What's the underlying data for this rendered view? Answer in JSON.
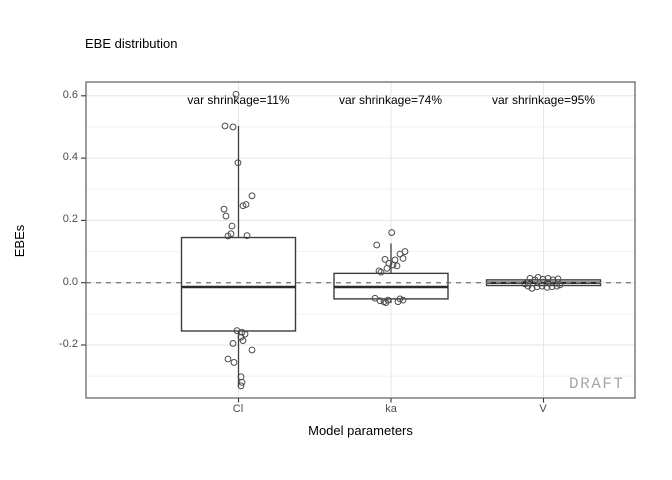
{
  "chart_data": {
    "type": "boxplot",
    "title": "EBE distribution",
    "xlabel": "Model parameters",
    "ylabel": "EBEs",
    "categories": [
      "Cl",
      "ka",
      "V"
    ],
    "y_ticks": [
      0.6,
      0.4,
      0.2,
      0.0,
      -0.2
    ],
    "y_tick_labels": [
      "0.6",
      "0.4",
      "0.2",
      "0.0",
      "-0.2"
    ],
    "y_minor_ticks": [
      0.5,
      0.3,
      0.1,
      -0.1,
      -0.3
    ],
    "ylim": [
      -0.37,
      0.644
    ],
    "reference_line": 0.0,
    "grid": true,
    "legend": false,
    "watermark": "DRAFT",
    "annotations": [
      {
        "category": "Cl",
        "label": "var shrinkage=11%"
      },
      {
        "category": "ka",
        "label": "var shrinkage=74%"
      },
      {
        "category": "V",
        "label": "var shrinkage=95%"
      }
    ],
    "series": [
      {
        "name": "Cl",
        "q1": -0.155,
        "median": -0.014,
        "q3": 0.145,
        "whisker_low": -0.334,
        "whisker_high": 0.503,
        "points": [
          [
            -2.5,
            0.605
          ],
          [
            -13.5,
            0.503
          ],
          [
            -5.5,
            0.5
          ],
          [
            -0.5,
            0.385
          ],
          [
            13.5,
            0.279
          ],
          [
            7.5,
            0.251
          ],
          [
            4.5,
            0.247
          ],
          [
            -14.5,
            0.236
          ],
          [
            -12.5,
            0.214
          ],
          [
            -6.5,
            0.182
          ],
          [
            -7.5,
            0.157
          ],
          [
            8.5,
            0.151
          ],
          [
            -10.5,
            0.15
          ],
          [
            -1.5,
            -0.154
          ],
          [
            3.5,
            -0.159
          ],
          [
            6.5,
            -0.165
          ],
          [
            2.5,
            -0.175
          ],
          [
            4.5,
            -0.186
          ],
          [
            -5.5,
            -0.195
          ],
          [
            13.5,
            -0.216
          ],
          [
            -10.5,
            -0.245
          ],
          [
            -4.5,
            -0.256
          ],
          [
            2.5,
            -0.302
          ],
          [
            3.5,
            -0.32
          ],
          [
            2.5,
            -0.331
          ]
        ]
      },
      {
        "name": "ka",
        "q1": -0.052,
        "median": -0.014,
        "q3": 0.03,
        "whisker_low": -0.065,
        "whisker_high": 0.126,
        "points": [
          [
            0.7,
            0.161
          ],
          [
            -14.3,
            0.121
          ],
          [
            14,
            0.1
          ],
          [
            9,
            0.092
          ],
          [
            12,
            0.078
          ],
          [
            -6,
            0.075
          ],
          [
            4,
            0.073
          ],
          [
            -2,
            0.062
          ],
          [
            2,
            0.057
          ],
          [
            6,
            0.054
          ],
          [
            -4,
            0.046
          ],
          [
            -12,
            0.038
          ],
          [
            -10,
            0.034
          ],
          [
            -16,
            -0.05
          ],
          [
            9,
            -0.052
          ],
          [
            -3,
            -0.056
          ],
          [
            12,
            -0.056
          ],
          [
            -11,
            -0.058
          ],
          [
            -7,
            -0.061
          ],
          [
            7,
            -0.061
          ],
          [
            -5,
            -0.064
          ]
        ]
      },
      {
        "name": "V",
        "q1": -0.009,
        "median": 0.0,
        "q3": 0.009,
        "whisker_low": -0.012,
        "whisker_high": 0.012,
        "points": [
          [
            -13.5,
            0.014
          ],
          [
            -8.5,
            0.009
          ],
          [
            -5.5,
            0.017
          ],
          [
            -0.5,
            0.011
          ],
          [
            4.5,
            0.014
          ],
          [
            9.5,
            0.009
          ],
          [
            14.5,
            0.012
          ],
          [
            -15.5,
            -0.011
          ],
          [
            -11.5,
            -0.018
          ],
          [
            -6.5,
            -0.013
          ],
          [
            -1.5,
            -0.011
          ],
          [
            3.5,
            -0.015
          ],
          [
            8.5,
            -0.013
          ],
          [
            13.5,
            -0.011
          ],
          [
            16.5,
            -0.007
          ],
          [
            -18.5,
            -0.004
          ]
        ]
      }
    ],
    "colors": {
      "background": "#ffffff",
      "panel_border": "#5c5c5c",
      "grid_major": "#e6e6e6",
      "grid_minor": "#f2f2f2",
      "box_border": "#3d3d3d",
      "box_fill": "#ffffff",
      "median": "#2b2b2b",
      "point_stroke": "#4a4a4a",
      "reference": "#7f7f7f",
      "tick": "#333333",
      "tick_label": "#4d4d4d",
      "watermark": "#a8a8a8"
    }
  }
}
